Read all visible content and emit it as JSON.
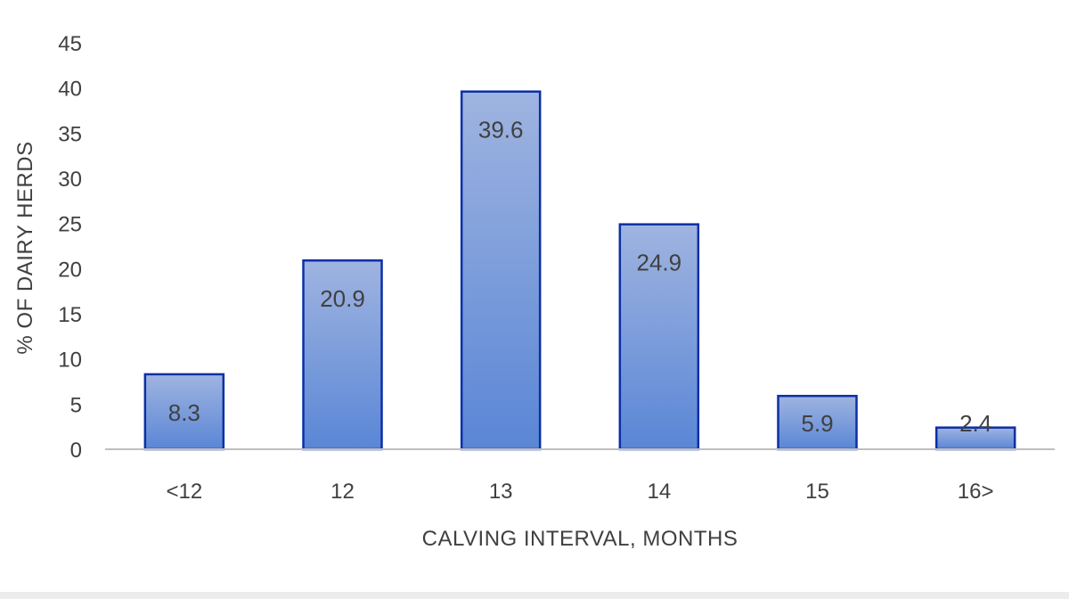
{
  "chart_data": {
    "type": "bar",
    "categories": [
      "<12",
      "12",
      "13",
      "14",
      "15",
      "16>"
    ],
    "values": [
      8.3,
      20.9,
      39.6,
      24.9,
      5.9,
      2.4
    ],
    "data_labels": [
      "8.3",
      "20.9",
      "39.6",
      "24.9",
      "5.9",
      "2.4"
    ],
    "title": "",
    "xlabel": "CALVING INTERVAL, MONTHS",
    "ylabel": "% OF DAIRY HERDS",
    "ylim": [
      0,
      45
    ],
    "yticks": [
      "0",
      "5",
      "10",
      "15",
      "20",
      "25",
      "30",
      "35",
      "40",
      "45"
    ],
    "grid": false,
    "legend": "none",
    "colors": {
      "bar_top": "#9fb4e0",
      "bar_bottom": "#5a86d6",
      "bar_border": "#0b2fa5",
      "axis": "#bfbfbf",
      "text": "#404040"
    }
  }
}
